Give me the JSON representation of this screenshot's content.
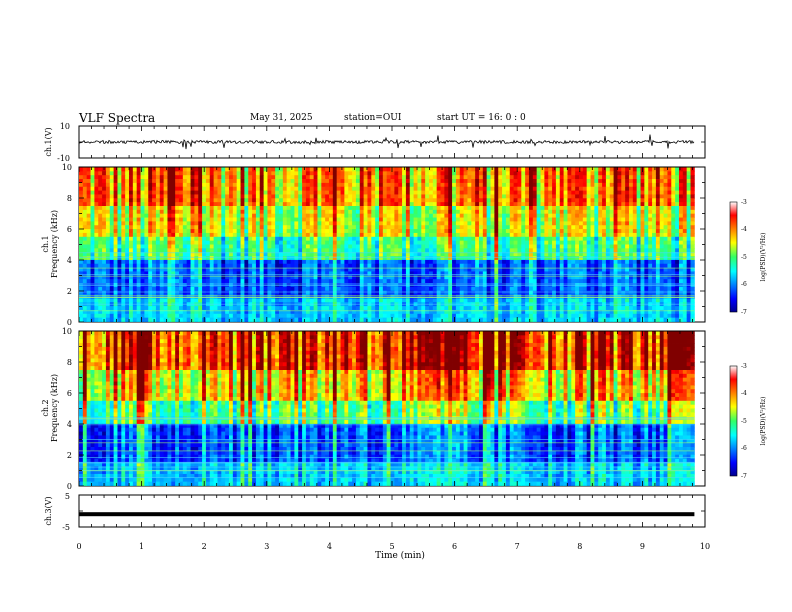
{
  "header": {
    "title": "VLF Spectra",
    "date": "May 31, 2025",
    "station": "station=OUI",
    "start": "start  UT =   16: 0  : 0"
  },
  "chart_data": [
    {
      "type": "line",
      "panel": "ch1 waveform",
      "ylabel": "ch.1(V)",
      "ylim": [
        -10,
        10
      ],
      "ytick_labels": [
        "-10",
        "10"
      ],
      "baseline": 0,
      "x_range_min": [
        0,
        9.83
      ]
    },
    {
      "type": "heatmap",
      "panel": "ch1 spectrogram",
      "ylabel_top": "ch.1",
      "ylabel": "Frequency (kHz)",
      "ylim": [
        0,
        10
      ],
      "ytick_labels": [
        "0",
        "2",
        "4",
        "6",
        "8",
        "10"
      ],
      "colorbar": {
        "label": "log(PSD)(V²/Hz)",
        "range": [
          -7,
          -3
        ],
        "tick_labels": [
          "-7",
          "-6",
          "-5",
          "-4",
          "-3"
        ]
      }
    },
    {
      "type": "heatmap",
      "panel": "ch2 spectrogram",
      "ylabel_top": "ch.2",
      "ylabel": "Frequency (kHz)",
      "ylim": [
        0,
        10
      ],
      "ytick_labels": [
        "0",
        "2",
        "4",
        "6",
        "8",
        "10"
      ],
      "colorbar": {
        "label": "log(PSD)(V²/Hz)",
        "range": [
          -7,
          -3
        ],
        "tick_labels": [
          "-7",
          "-6",
          "-5",
          "-4",
          "-3"
        ]
      }
    },
    {
      "type": "line",
      "panel": "ch3 waveform",
      "ylabel": "ch.3(V)",
      "ylim": [
        -5,
        5
      ],
      "ytick_labels": [
        "-5",
        "5"
      ],
      "values_constant": -1
    }
  ],
  "xaxis": {
    "label": "Time (min)",
    "range": [
      0,
      10
    ],
    "tick_labels": [
      "0",
      "1",
      "2",
      "3",
      "4",
      "5",
      "6",
      "7",
      "8",
      "9",
      "10"
    ]
  },
  "colors": {
    "jet": [
      "#00008f",
      "#0000ff",
      "#00ffff",
      "#ffff00",
      "#ff0000",
      "#800000"
    ]
  }
}
